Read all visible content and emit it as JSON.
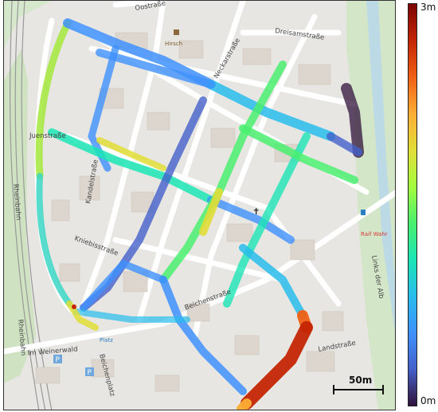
{
  "colorbar": {
    "max_label": "3m",
    "min_label": "0m",
    "colormap": "turbo",
    "colors": [
      "#7a0403",
      "#c42503",
      "#f06014",
      "#fdad35",
      "#e1dd37",
      "#a4fc3c",
      "#4aef6e",
      "#1be5b5",
      "#28bceb",
      "#3e91fe",
      "#4460c9",
      "#30123b"
    ]
  },
  "scale": {
    "label": "50m"
  },
  "streets": {
    "oostrasse": "Oostraße",
    "neckarstrasse": "Neckarstraße",
    "dreisamstrasse": "Dreisamstraße",
    "juenstrasse": "Juenstraße",
    "kandelstrasse": "Kandelstraße",
    "kniebisstrasse": "Kniebisstraße",
    "beichenstrasse": "Beichenstraße",
    "im_weinerwald": "Im Weinerwald",
    "beichenplatz": "Beichenplatz",
    "links_der_alb": "Links der Alb",
    "landstrasse": "Landstraße",
    "rheinbahn": "Rheinbahn",
    "rheinbahn2": "Rheinbahn"
  },
  "pois": {
    "hirsch": "Hirsch",
    "raiffeisen": "Raif Wahr",
    "platz": "Platz",
    "parking": "P"
  }
}
